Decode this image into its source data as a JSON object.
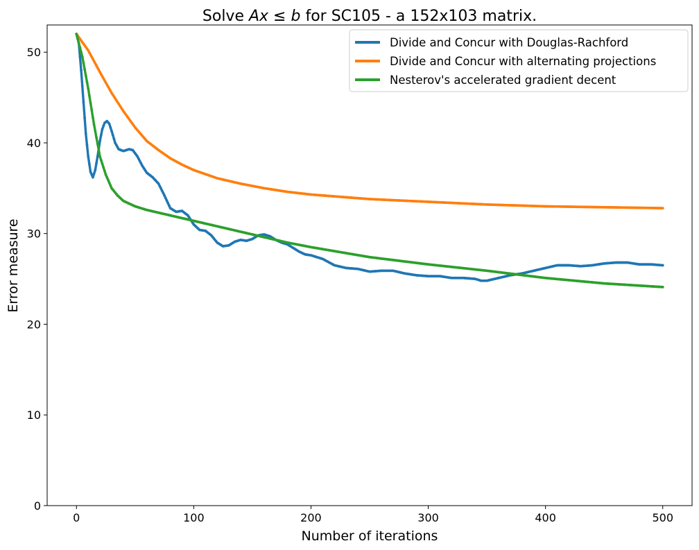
{
  "chart_data": {
    "type": "line",
    "title": {
      "prefix": "Solve ",
      "math": "Ax ≤ b",
      "suffix": " for SC105 - a 152x103 matrix."
    },
    "xlabel": "Number of iterations",
    "ylabel": "Error measure",
    "xlim": [
      -25,
      525
    ],
    "ylim": [
      0,
      53
    ],
    "xticks": [
      0,
      100,
      200,
      300,
      400,
      500
    ],
    "yticks": [
      0,
      10,
      20,
      30,
      40,
      50
    ],
    "grid": false,
    "legend_position": "top-right",
    "series": [
      {
        "name": "Divide and Concur with Douglas-Rachford",
        "color": "#1f77b4",
        "points": [
          [
            0,
            52
          ],
          [
            2,
            51
          ],
          [
            4,
            48
          ],
          [
            6,
            44.5
          ],
          [
            8,
            41
          ],
          [
            10,
            38.5
          ],
          [
            12,
            36.8
          ],
          [
            14,
            36.2
          ],
          [
            16,
            37
          ],
          [
            18,
            38.5
          ],
          [
            20,
            40.2
          ],
          [
            22,
            41.5
          ],
          [
            24,
            42.2
          ],
          [
            26,
            42.4
          ],
          [
            28,
            42.1
          ],
          [
            30,
            41.3
          ],
          [
            33,
            40
          ],
          [
            36,
            39.3
          ],
          [
            40,
            39.1
          ],
          [
            45,
            39.3
          ],
          [
            48,
            39.2
          ],
          [
            52,
            38.5
          ],
          [
            56,
            37.5
          ],
          [
            60,
            36.7
          ],
          [
            65,
            36.2
          ],
          [
            70,
            35.5
          ],
          [
            75,
            34.2
          ],
          [
            80,
            32.8
          ],
          [
            85,
            32.4
          ],
          [
            90,
            32.5
          ],
          [
            95,
            32
          ],
          [
            100,
            31
          ],
          [
            105,
            30.4
          ],
          [
            110,
            30.3
          ],
          [
            115,
            29.8
          ],
          [
            120,
            29
          ],
          [
            125,
            28.6
          ],
          [
            130,
            28.7
          ],
          [
            135,
            29.1
          ],
          [
            140,
            29.3
          ],
          [
            145,
            29.2
          ],
          [
            150,
            29.4
          ],
          [
            155,
            29.8
          ],
          [
            160,
            29.9
          ],
          [
            165,
            29.7
          ],
          [
            170,
            29.3
          ],
          [
            175,
            29
          ],
          [
            180,
            28.8
          ],
          [
            185,
            28.4
          ],
          [
            190,
            28
          ],
          [
            195,
            27.7
          ],
          [
            200,
            27.6
          ],
          [
            210,
            27.2
          ],
          [
            220,
            26.5
          ],
          [
            230,
            26.2
          ],
          [
            240,
            26.1
          ],
          [
            250,
            25.8
          ],
          [
            260,
            25.9
          ],
          [
            270,
            25.9
          ],
          [
            280,
            25.6
          ],
          [
            290,
            25.4
          ],
          [
            300,
            25.3
          ],
          [
            310,
            25.3
          ],
          [
            320,
            25.1
          ],
          [
            330,
            25.1
          ],
          [
            340,
            25
          ],
          [
            345,
            24.8
          ],
          [
            350,
            24.8
          ],
          [
            360,
            25.1
          ],
          [
            370,
            25.4
          ],
          [
            380,
            25.6
          ],
          [
            390,
            25.9
          ],
          [
            400,
            26.2
          ],
          [
            410,
            26.5
          ],
          [
            420,
            26.5
          ],
          [
            430,
            26.4
          ],
          [
            440,
            26.5
          ],
          [
            450,
            26.7
          ],
          [
            460,
            26.8
          ],
          [
            470,
            26.8
          ],
          [
            480,
            26.6
          ],
          [
            490,
            26.6
          ],
          [
            500,
            26.5
          ]
        ]
      },
      {
        "name": "Divide and Concur with alternating projections",
        "color": "#ff7f0e",
        "points": [
          [
            0,
            52
          ],
          [
            10,
            50.2
          ],
          [
            20,
            47.8
          ],
          [
            30,
            45.5
          ],
          [
            40,
            43.5
          ],
          [
            50,
            41.7
          ],
          [
            60,
            40.2
          ],
          [
            70,
            39.2
          ],
          [
            80,
            38.3
          ],
          [
            90,
            37.6
          ],
          [
            100,
            37
          ],
          [
            120,
            36.1
          ],
          [
            140,
            35.5
          ],
          [
            160,
            35
          ],
          [
            180,
            34.6
          ],
          [
            200,
            34.3
          ],
          [
            250,
            33.8
          ],
          [
            300,
            33.5
          ],
          [
            350,
            33.2
          ],
          [
            400,
            33
          ],
          [
            450,
            32.9
          ],
          [
            500,
            32.8
          ]
        ]
      },
      {
        "name": "Nesterov's accelerated gradient decent",
        "color": "#2ca02c",
        "points": [
          [
            0,
            52
          ],
          [
            5,
            49.5
          ],
          [
            10,
            46
          ],
          [
            15,
            42
          ],
          [
            20,
            38.5
          ],
          [
            25,
            36.5
          ],
          [
            30,
            35
          ],
          [
            35,
            34.2
          ],
          [
            40,
            33.6
          ],
          [
            50,
            33
          ],
          [
            60,
            32.6
          ],
          [
            80,
            32
          ],
          [
            100,
            31.4
          ],
          [
            120,
            30.8
          ],
          [
            140,
            30.2
          ],
          [
            160,
            29.6
          ],
          [
            180,
            29
          ],
          [
            200,
            28.5
          ],
          [
            250,
            27.4
          ],
          [
            300,
            26.6
          ],
          [
            350,
            25.9
          ],
          [
            400,
            25.1
          ],
          [
            450,
            24.5
          ],
          [
            500,
            24.1
          ]
        ]
      }
    ]
  }
}
